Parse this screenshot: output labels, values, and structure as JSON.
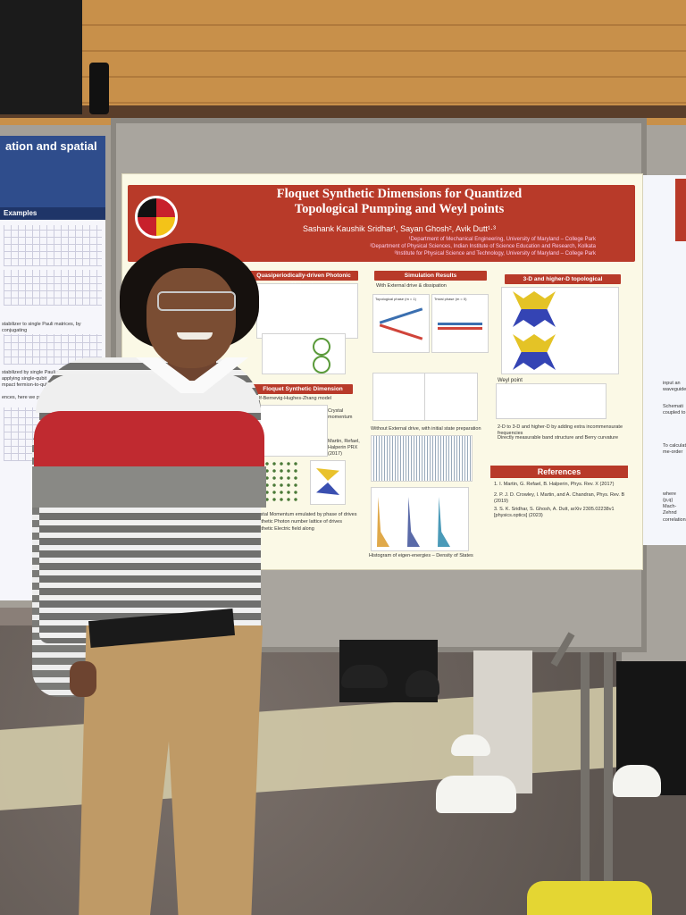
{
  "poster": {
    "title_line1": "Floquet Synthetic Dimensions for Quantized",
    "title_line2": "Topological Pumping and Weyl points",
    "authors": "Sashank Kaushik Sridhar¹, Sayan Ghosh², Avik Dutt¹·³",
    "affiliation1": "¹Department of Mechanical Engineering, University of Maryland – College Park",
    "affiliation2": "²Department of Physical Sciences, Indian Institute of Science Education and Research, Kolkata",
    "affiliation3": "³Institute for Physical Science and Technology, University of Maryland – College Park",
    "logo_text": "UNIVERSITY OF MARYLAND",
    "sections": {
      "molecule": "Quasiperiodically-driven Photonic Molecule",
      "simulation": "Simulation Results",
      "higher_d": "3-D and higher-D topological Hamiltonians",
      "floquet": "Floquet Synthetic Dimension",
      "references": "References"
    },
    "sim_caption": "With External drive & dissipation",
    "sim_caption2": "Without External drive, with initial state preparation",
    "phase1": "Topological phase (m = 1)",
    "phase2": "Trivial phase (m = 0)",
    "weyl_text": "Weyl point",
    "bullet1": "2-D to 3-D and higher-D by adding extra incommensurate frequencies",
    "bullet2": "Directly measurable band structure and Berry curvature",
    "floquet_text1": "Half-Bernevig-Hughes-Zhang model",
    "floquet_text2": "Crystal Momentum emulated by phase of drives",
    "floquet_text3": "Synthetic Photon number lattice of drives",
    "floquet_text4": "Synthetic Electric field along",
    "floquet_note": "Crystal momentum",
    "ref_citation": "Martin, Refael, Halperin PRX (2017)",
    "references": [
      "1. I. Martin, G. Refael, B. Halperin, Phys. Rev. X (2017)",
      "2. P. J. D. Crowley, I. Martin, and A. Chandran, Phys. Rev. B (2019)",
      "3. S. K. Sridhar, S. Ghosh, A. Dutt, arXiv 2305.02238v1 [physics.optics] (2023)"
    ],
    "footer_note": "Histogram of eigen-energies – Density of States"
  },
  "left_poster": {
    "header": "ation and spatial",
    "band": "Examples",
    "text1": "stabilizer to single Pauli matrices, by conjugating",
    "text2": "stabilized by single Pauli matrices and applying single-qubit",
    "text3": "mpact fermion-to-qubit mapping",
    "text4": "ences, here we provide a qubit fermion-fer"
  },
  "right_poster": {
    "text1": "input an waveguide",
    "text2": "Schemati coupled to",
    "text3": "To calculat me-order",
    "text4": "where (p,q) Mach-Zehnd correlations"
  },
  "colors": {
    "banner": "#b83a29",
    "poster_bg": "#fbf9e6",
    "left_header": "#2f4d8c"
  }
}
